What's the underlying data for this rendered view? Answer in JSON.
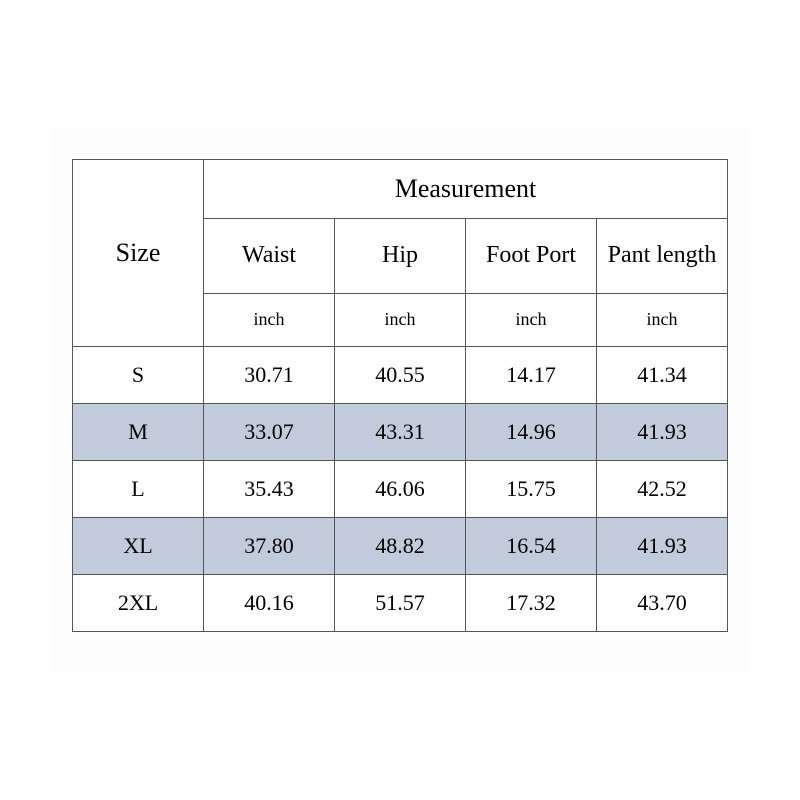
{
  "table": {
    "type": "table",
    "background_color": "#ffffff",
    "border_color": "#555555",
    "alt_row_color": "#c1cbdb",
    "text_color": "#000000",
    "font_family": "Georgia",
    "size_header": "Size",
    "measurement_header": "Measurement",
    "columns": [
      "Waist",
      "Hip",
      "Foot Port",
      "Pant length"
    ],
    "unit_label": "inch",
    "header_fontsize": 26,
    "subheader_fontsize": 24,
    "unit_fontsize": 18,
    "data_fontsize": 22,
    "rows": [
      {
        "size": "S",
        "waist": "30.71",
        "hip": "40.55",
        "foot_port": "14.17",
        "pant_length": "41.34",
        "alt": false
      },
      {
        "size": "M",
        "waist": "33.07",
        "hip": "43.31",
        "foot_port": "14.96",
        "pant_length": "41.93",
        "alt": true
      },
      {
        "size": "L",
        "waist": "35.43",
        "hip": "46.06",
        "foot_port": "15.75",
        "pant_length": "42.52",
        "alt": false
      },
      {
        "size": "XL",
        "waist": "37.80",
        "hip": "48.82",
        "foot_port": "16.54",
        "pant_length": "41.93",
        "alt": true
      },
      {
        "size": "2XL",
        "waist": "40.16",
        "hip": "51.57",
        "foot_port": "17.32",
        "pant_length": "43.70",
        "alt": false
      }
    ]
  }
}
